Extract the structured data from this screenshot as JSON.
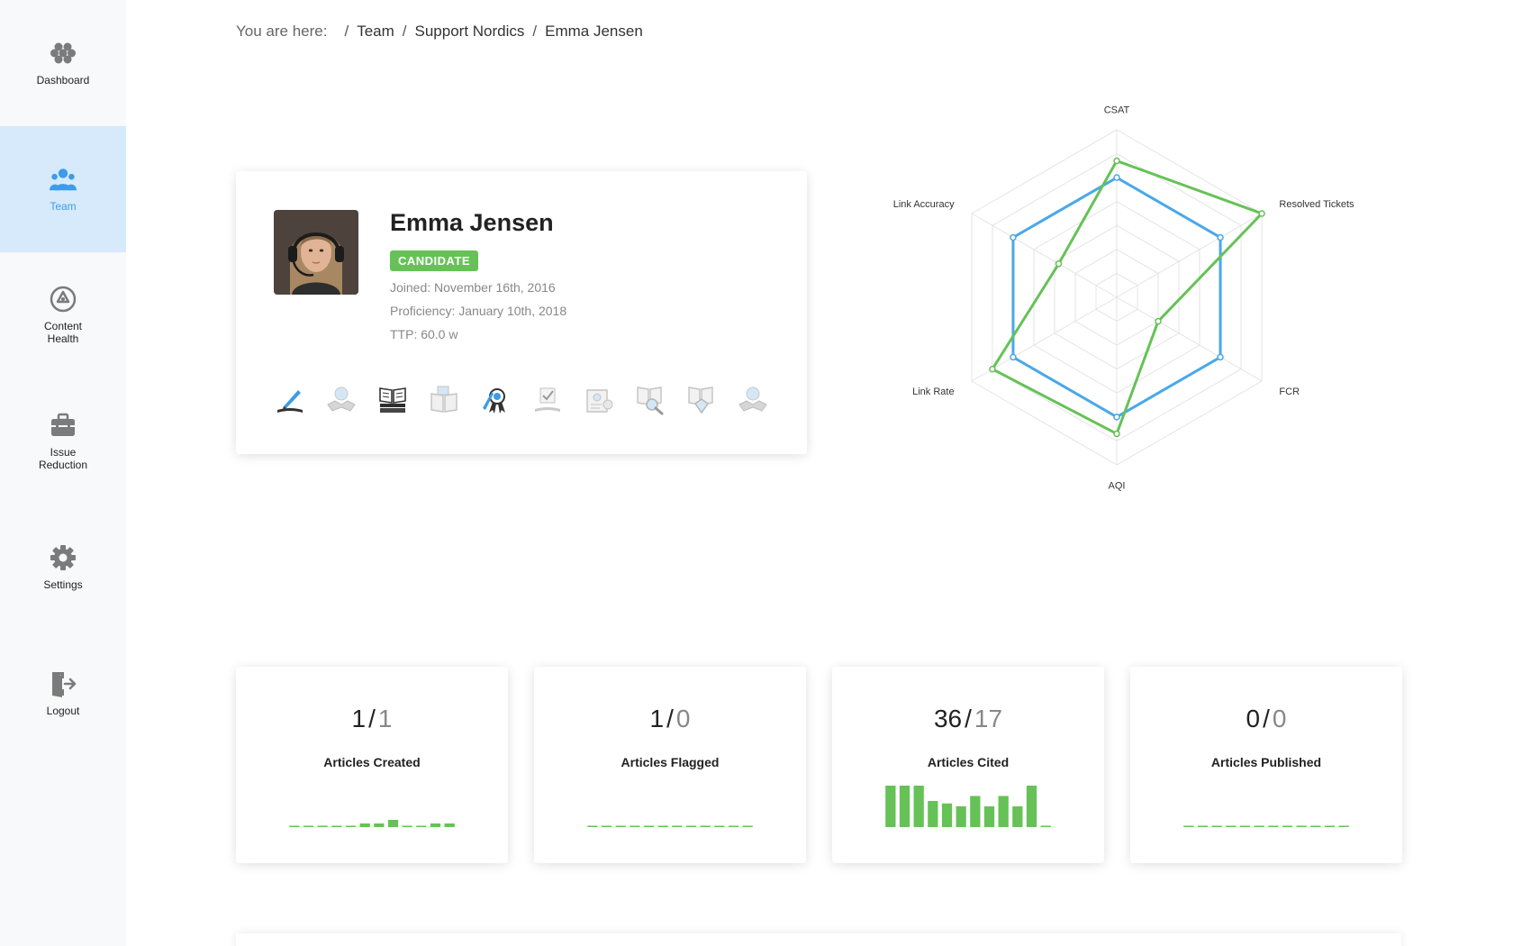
{
  "sidebar": {
    "items": [
      {
        "label": "Dashboard",
        "icon": "honeycomb-icon"
      },
      {
        "label": "Team",
        "icon": "team-icon",
        "active": true
      },
      {
        "label": "Content\nHealth",
        "icon": "recycle-icon"
      },
      {
        "label": "Issue\nReduction",
        "icon": "toolbox-icon"
      },
      {
        "label": "Settings",
        "icon": "gear-icon"
      },
      {
        "label": "Logout",
        "icon": "logout-icon"
      }
    ]
  },
  "breadcrumb": {
    "prefix": "You are here:",
    "separator": "/",
    "items": [
      "Team",
      "Support Nordics",
      "Emma Jensen"
    ]
  },
  "profile": {
    "name": "Emma Jensen",
    "status": "CANDIDATE",
    "joined": "Joined: November 16th, 2016",
    "proficiency": "Proficiency: January 10th, 2018",
    "ttp": "TTP: 60.0 w",
    "badges": [
      {
        "icon": "quill-book-icon",
        "earned": true
      },
      {
        "icon": "handshake-icon",
        "earned": false
      },
      {
        "icon": "open-book-stack-icon",
        "earned": true
      },
      {
        "icon": "book-flag-icon",
        "earned": false
      },
      {
        "icon": "award-ribbon-icon",
        "earned": true
      },
      {
        "icon": "book-check-icon",
        "earned": false
      },
      {
        "icon": "book-settings-icon",
        "earned": false
      },
      {
        "icon": "book-magnifier-icon",
        "earned": false
      },
      {
        "icon": "book-diamond-icon",
        "earned": false
      },
      {
        "icon": "handshake-heart-icon",
        "earned": false
      }
    ]
  },
  "chart_data": {
    "type": "radar",
    "axes": [
      "CSAT",
      "Resolved Tickets",
      "FCR",
      "AQI",
      "Link Rate",
      "Link Accuracy"
    ],
    "max": 7,
    "levels": 7,
    "series": [
      {
        "color": "#4aa8e8",
        "values": [
          5.0,
          5.0,
          5.0,
          5.0,
          5.0,
          5.0
        ]
      },
      {
        "color": "#66c257",
        "values": [
          5.7,
          7.0,
          2.0,
          5.7,
          6.0,
          2.8
        ]
      }
    ],
    "grid": true
  },
  "stats": [
    {
      "primary": "1",
      "secondary": "1",
      "label": "Articles Created",
      "spark": [
        0,
        0,
        0,
        0,
        0,
        1,
        1,
        2,
        0,
        0,
        1,
        1
      ]
    },
    {
      "primary": "1",
      "secondary": "0",
      "label": "Articles Flagged",
      "spark": [
        0,
        0,
        0,
        0,
        0,
        0,
        0,
        0,
        0,
        0,
        0,
        0
      ]
    },
    {
      "primary": "36",
      "secondary": "17",
      "label": "Articles Cited",
      "spark": [
        10,
        10,
        10,
        6.3,
        5.7,
        5,
        7.5,
        5,
        7.5,
        5,
        10,
        0
      ]
    },
    {
      "primary": "0",
      "secondary": "0",
      "label": "Articles Published",
      "spark": [
        0,
        0,
        0,
        0,
        0,
        0,
        0,
        0,
        0,
        0,
        0,
        0
      ]
    }
  ],
  "colors": {
    "accent": "#3d9be9",
    "green": "#66c257",
    "active_bg": "#d6eafb"
  }
}
